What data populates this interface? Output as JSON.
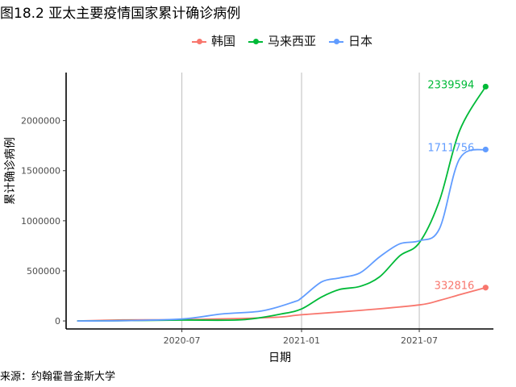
{
  "figure": {
    "title": "图18.2 亚太主要疫情国家累计确诊病例",
    "source_note": "来源：约翰霍普金斯大学"
  },
  "chart_data": {
    "type": "line",
    "xlabel": "日期",
    "ylabel": "累计确诊病例",
    "x_ticks": [
      "2020-07",
      "2021-01",
      "2021-07"
    ],
    "y_ticks": [
      0,
      500000,
      1000000,
      1500000,
      2000000
    ],
    "ylim": [
      -80000,
      2480000
    ],
    "xlim": [
      "2020-01-05",
      "2021-10-23"
    ],
    "grid": "vertical-major",
    "legend_position": "top",
    "series": [
      {
        "name": "韩国",
        "color": "#F8766D",
        "end_label": "332816",
        "x": [
          "2020-01-22",
          "2020-04-01",
          "2020-07-01",
          "2020-10-01",
          "2020-12-01",
          "2021-01-01",
          "2021-04-01",
          "2021-07-01",
          "2021-08-01",
          "2021-09-01",
          "2021-10-11"
        ],
        "values": [
          0,
          10000,
          13000,
          25000,
          40000,
          62000,
          105000,
          160000,
          205000,
          262000,
          332816
        ]
      },
      {
        "name": "马来西亚",
        "color": "#00BA38",
        "end_label": "2339594",
        "x": [
          "2020-01-22",
          "2020-04-01",
          "2020-07-01",
          "2020-10-01",
          "2020-12-01",
          "2021-01-01",
          "2021-02-01",
          "2021-03-01",
          "2021-04-01",
          "2021-05-01",
          "2021-06-01",
          "2021-07-01",
          "2021-08-01",
          "2021-09-01",
          "2021-10-11"
        ],
        "values": [
          0,
          3000,
          8600,
          12000,
          70000,
          120000,
          240000,
          315000,
          345000,
          440000,
          650000,
          780000,
          1200000,
          1900000,
          2339594
        ]
      },
      {
        "name": "日本",
        "color": "#619CFF",
        "end_label": "1711756",
        "x": [
          "2020-01-22",
          "2020-04-01",
          "2020-07-01",
          "2020-09-01",
          "2020-11-01",
          "2020-12-20",
          "2021-01-01",
          "2021-02-01",
          "2021-03-01",
          "2021-04-01",
          "2021-05-01",
          "2021-06-01",
          "2021-07-01",
          "2021-08-01",
          "2021-09-01",
          "2021-10-11"
        ],
        "values": [
          0,
          3000,
          19000,
          70000,
          100000,
          190000,
          230000,
          390000,
          430000,
          480000,
          640000,
          770000,
          800000,
          920000,
          1620000,
          1711756
        ]
      }
    ]
  }
}
